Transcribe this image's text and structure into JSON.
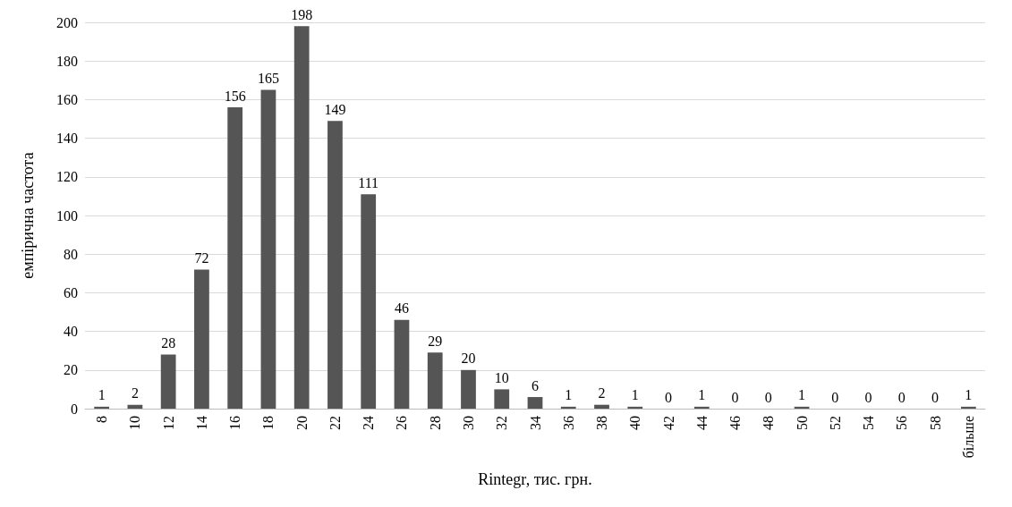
{
  "chart_data": {
    "type": "bar",
    "xlabel": "Rintegr, тис. грн.",
    "ylabel": "емпірична частота",
    "categories": [
      "8",
      "10",
      "12",
      "14",
      "16",
      "18",
      "20",
      "22",
      "24",
      "26",
      "28",
      "30",
      "32",
      "34",
      "36",
      "38",
      "40",
      "42",
      "44",
      "46",
      "48",
      "50",
      "52",
      "54",
      "56",
      "58",
      "більше"
    ],
    "values": [
      1,
      2,
      28,
      72,
      156,
      165,
      198,
      149,
      111,
      46,
      29,
      20,
      10,
      6,
      1,
      2,
      1,
      0,
      1,
      0,
      0,
      1,
      0,
      0,
      0,
      0,
      1
    ],
    "color": "#555555",
    "ylim": [
      0,
      200
    ],
    "yticks": [
      0,
      20,
      40,
      60,
      80,
      100,
      120,
      140,
      160,
      180,
      200
    ],
    "grid": "y",
    "data_labels": true
  }
}
